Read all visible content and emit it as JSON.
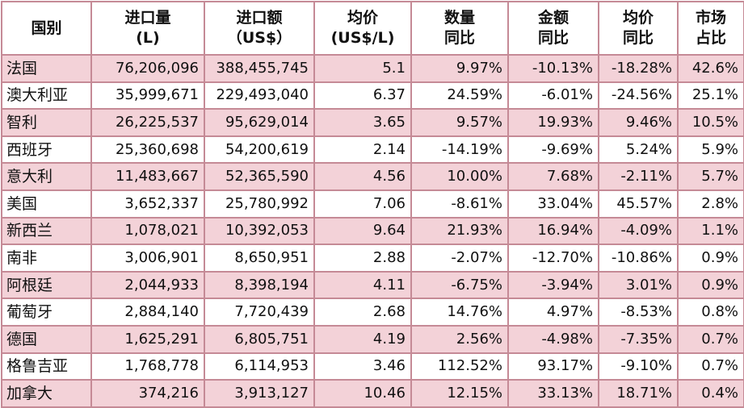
{
  "table": {
    "headers": [
      {
        "l1": "国别",
        "l2": ""
      },
      {
        "l1": "进口量",
        "l2": "(L)"
      },
      {
        "l1": "进口额",
        "l2": "（US$）"
      },
      {
        "l1": "均价",
        "l2": "(US$/L)"
      },
      {
        "l1": "数量",
        "l2": "同比"
      },
      {
        "l1": "金额",
        "l2": "同比"
      },
      {
        "l1": "均价",
        "l2": "同比"
      },
      {
        "l1": "市场",
        "l2": "占比"
      }
    ],
    "rows": [
      [
        "法国",
        "76,206,096",
        "388,455,745",
        "5.1",
        "9.97%",
        "-10.13%",
        "-18.28%",
        "42.6%"
      ],
      [
        "澳大利亚",
        "35,999,671",
        "229,493,040",
        "6.37",
        "24.59%",
        "-6.01%",
        "-24.56%",
        "25.1%"
      ],
      [
        "智利",
        "26,225,537",
        "95,629,014",
        "3.65",
        "9.57%",
        "19.93%",
        "9.46%",
        "10.5%"
      ],
      [
        "西班牙",
        "25,360,698",
        "54,200,619",
        "2.14",
        "-14.19%",
        "-9.69%",
        "5.24%",
        "5.9%"
      ],
      [
        "意大利",
        "11,483,667",
        "52,365,590",
        "4.56",
        "10.00%",
        "7.68%",
        "-2.11%",
        "5.7%"
      ],
      [
        "美国",
        "3,652,337",
        "25,780,992",
        "7.06",
        "-8.61%",
        "33.04%",
        "45.57%",
        "2.8%"
      ],
      [
        "新西兰",
        "1,078,021",
        "10,392,053",
        "9.64",
        "21.93%",
        "16.94%",
        "-4.09%",
        "1.1%"
      ],
      [
        "南非",
        "3,006,901",
        "8,650,951",
        "2.88",
        "-2.07%",
        "-12.70%",
        "-10.86%",
        "0.9%"
      ],
      [
        "阿根廷",
        "2,044,933",
        "8,398,194",
        "4.11",
        "-6.75%",
        "-3.94%",
        "3.01%",
        "0.9%"
      ],
      [
        "葡萄牙",
        "2,884,140",
        "7,720,439",
        "2.68",
        "14.76%",
        "4.97%",
        "-8.53%",
        "0.8%"
      ],
      [
        "德国",
        "1,625,291",
        "6,805,751",
        "4.19",
        "2.56%",
        "-4.98%",
        "-7.35%",
        "0.7%"
      ],
      [
        "格鲁吉亚",
        "1,768,778",
        "6,114,953",
        "3.46",
        "112.52%",
        "93.17%",
        "-9.10%",
        "0.7%"
      ],
      [
        "加拿大",
        "374,216",
        "3,913,127",
        "10.46",
        "12.15%",
        "33.13%",
        "18.71%",
        "0.4%"
      ]
    ]
  },
  "colors": {
    "border": "#c58a96",
    "stripe": "#f3d2d8",
    "background": "#ffffff"
  }
}
